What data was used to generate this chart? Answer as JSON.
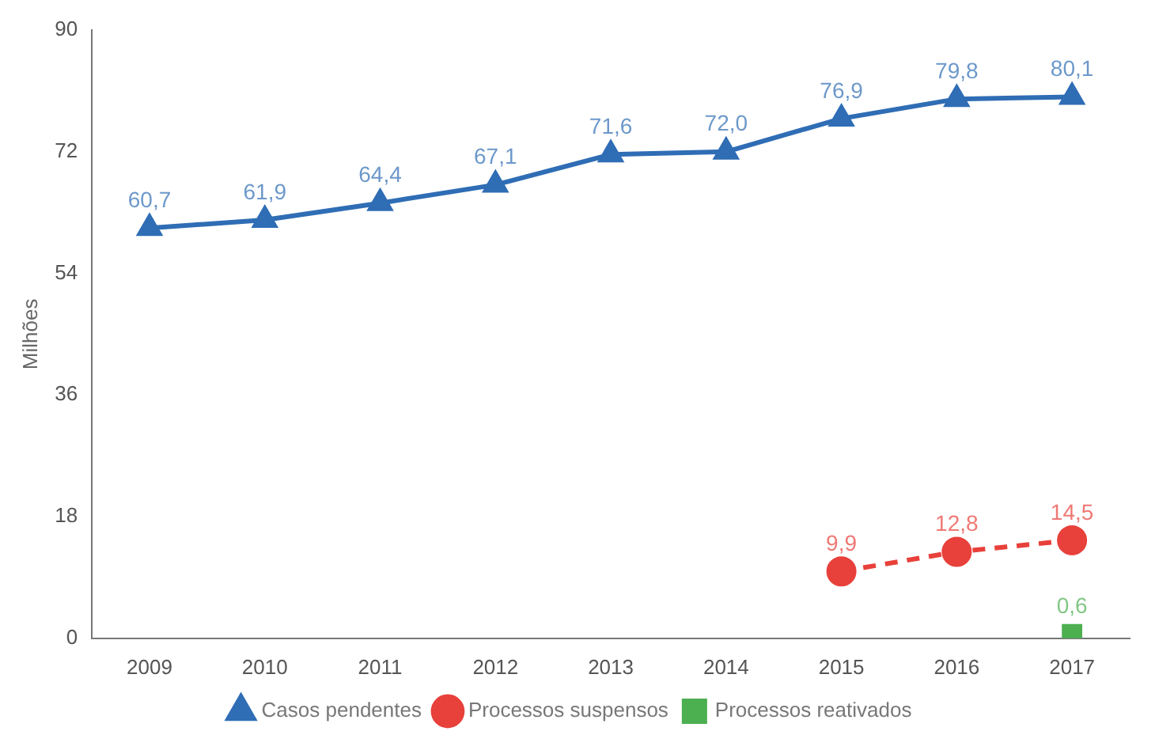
{
  "chart_data": {
    "type": "line",
    "ylabel": "Milhões",
    "categories": [
      "2009",
      "2010",
      "2011",
      "2012",
      "2013",
      "2014",
      "2015",
      "2016",
      "2017"
    ],
    "series": [
      {
        "name": "Casos pendentes",
        "color": "#2f6db5",
        "marker": "triangle",
        "line_style": "solid",
        "values": [
          60.7,
          61.9,
          64.4,
          67.1,
          71.6,
          72.0,
          76.9,
          79.8,
          80.1
        ],
        "value_labels": [
          "60,7",
          "61,9",
          "64,4",
          "67,1",
          "71,6",
          "72,0",
          "76,9",
          "79,8",
          "80,1"
        ]
      },
      {
        "name": "Processos suspensos",
        "color": "#e8403a",
        "marker": "circle",
        "line_style": "dashed",
        "values": [
          null,
          null,
          null,
          null,
          null,
          null,
          9.9,
          12.8,
          14.5
        ],
        "value_labels": [
          null,
          null,
          null,
          null,
          null,
          null,
          "9,9",
          "12,8",
          "14,5"
        ]
      },
      {
        "name": "Processos reativados",
        "color": "#4caf50",
        "marker": "square",
        "line_style": "dashed",
        "values": [
          null,
          null,
          null,
          null,
          null,
          null,
          null,
          null,
          0.6
        ],
        "value_labels": [
          null,
          null,
          null,
          null,
          null,
          null,
          null,
          null,
          "0,6"
        ]
      }
    ],
    "ylim": [
      0,
      90
    ],
    "yticks": [
      0,
      18,
      36,
      54,
      72,
      90
    ],
    "grid": false,
    "legend": "bottom"
  }
}
